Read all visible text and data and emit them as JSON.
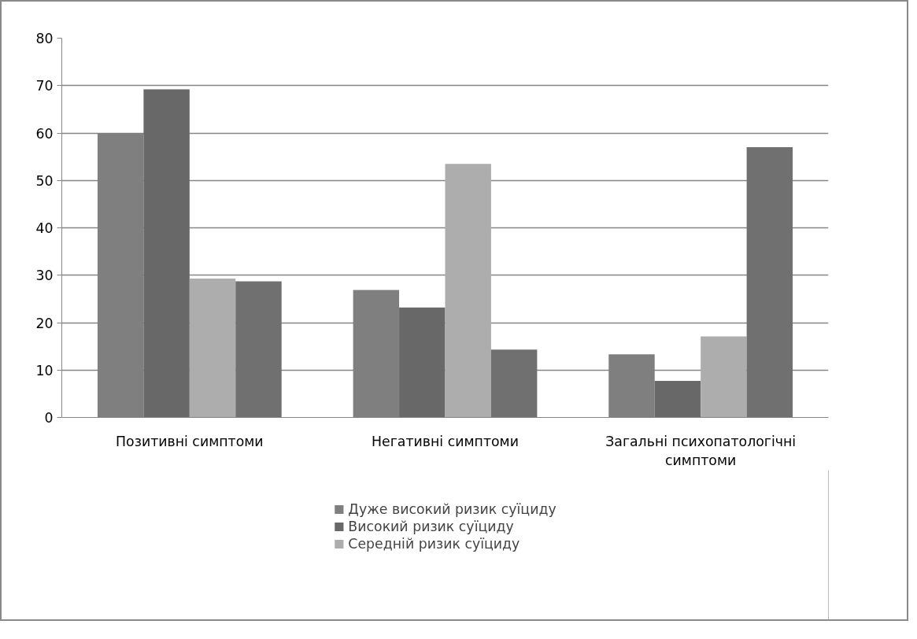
{
  "chart_data": {
    "type": "bar",
    "categories": [
      "Позитивні симптоми",
      "Негативні симптоми",
      "Загальні психопатологічні симптоми"
    ],
    "series": [
      {
        "name": "Дуже високий ризик суїциду",
        "color": "#7f7f7f",
        "values": [
          60,
          26.9,
          13.3
        ]
      },
      {
        "name": "Високий ризик суїциду",
        "color": "#686868",
        "values": [
          69.2,
          23.2,
          7.7
        ]
      },
      {
        "name": "Середній ризик суїциду",
        "color": "#adadad",
        "values": [
          29.3,
          53.5,
          17.1
        ]
      },
      {
        "color": "#707070",
        "values": [
          28.7,
          14.3,
          57.0
        ]
      }
    ],
    "ylim": [
      0,
      80
    ],
    "yticks": [
      0,
      10,
      20,
      30,
      40,
      50,
      60,
      70,
      80
    ],
    "grid": "y",
    "legend": "bottom"
  }
}
